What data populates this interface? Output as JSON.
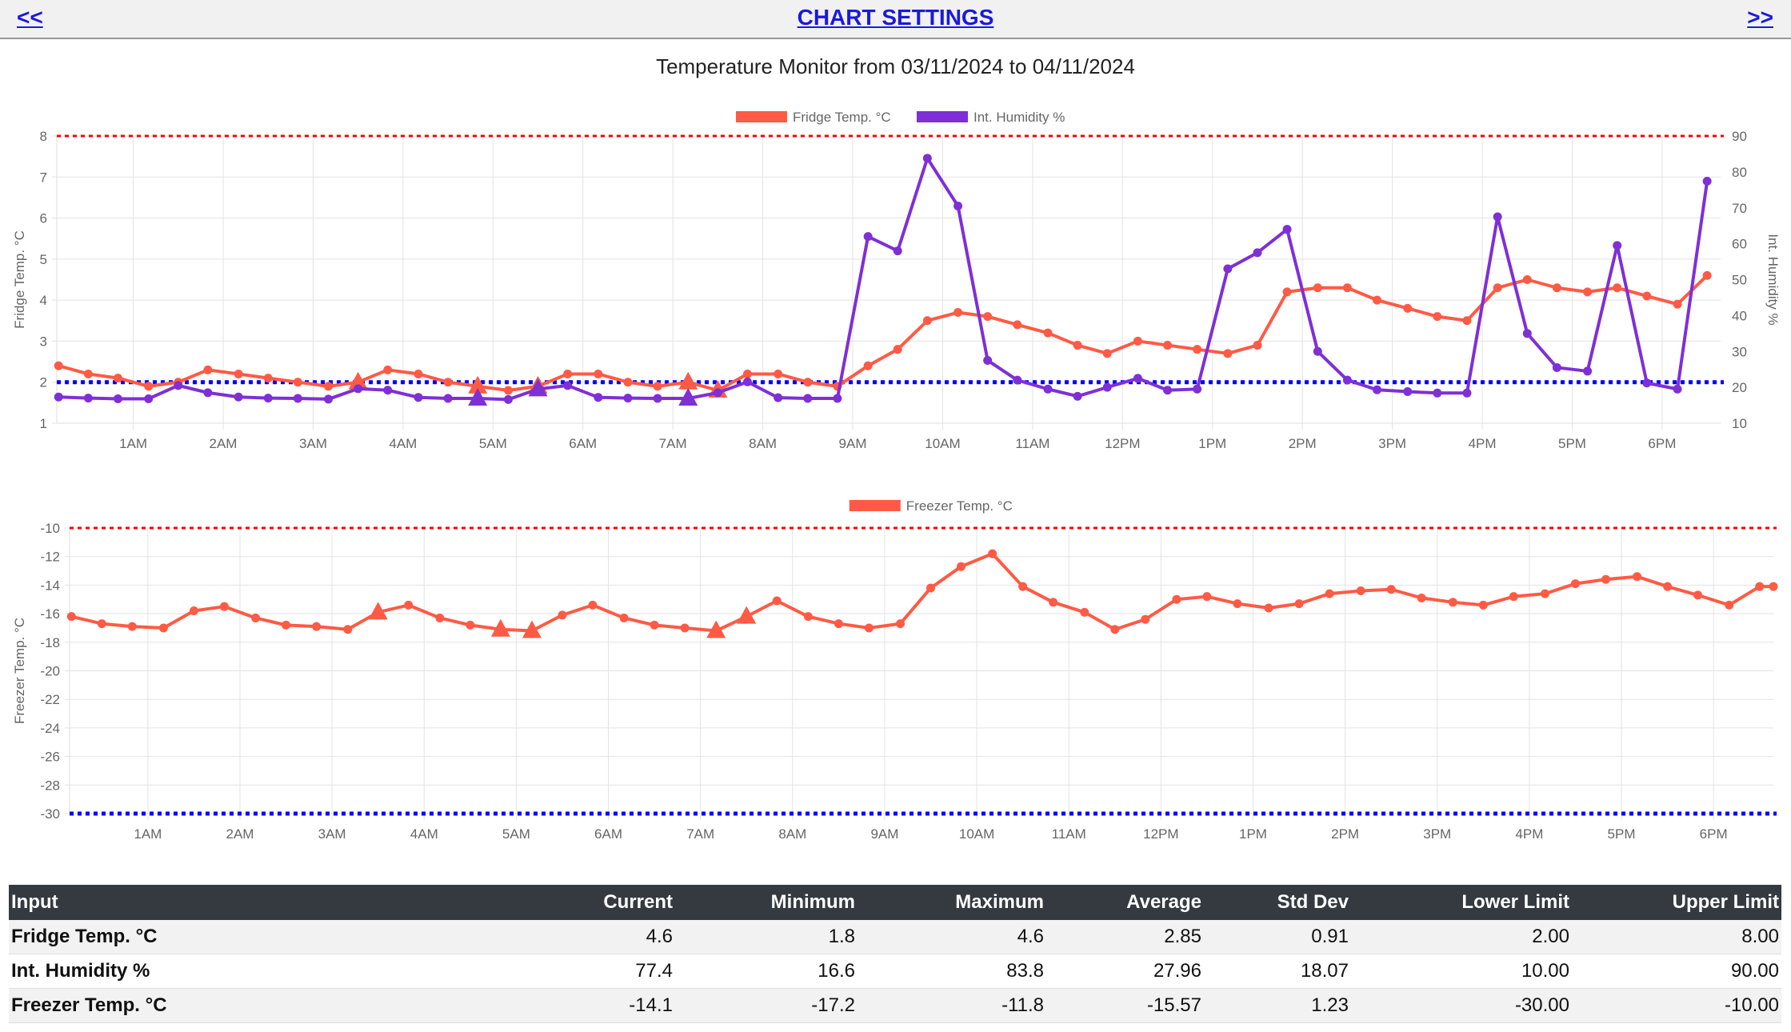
{
  "nav": {
    "prev": "<<",
    "title": "CHART SETTINGS",
    "next": ">>"
  },
  "page_title": "Temperature Monitor from 03/11/2024 to 04/11/2024",
  "colors": {
    "fridge": "#ff5a45",
    "humidity": "#7f2fd6",
    "freezer": "#ff5a45",
    "upper_limit": "#ff0000",
    "lower_limit": "#0000ff"
  },
  "chart_data": [
    {
      "type": "line",
      "x_ticks": [
        "1AM",
        "2AM",
        "3AM",
        "4AM",
        "5AM",
        "6AM",
        "7AM",
        "8AM",
        "9AM",
        "10AM",
        "11AM",
        "12PM",
        "1PM",
        "2PM",
        "3PM",
        "4PM",
        "5PM",
        "6PM"
      ],
      "xlim": [
        0.15,
        18.65
      ],
      "legend": [
        "Fridge Temp. °C",
        "Int. Humidity %"
      ],
      "legend_position": "top",
      "ylabel": "Fridge Temp. °C",
      "y2label": "Int. Humidity %",
      "ylim": [
        1,
        8
      ],
      "y2lim": [
        10,
        90
      ],
      "yticks": [
        1,
        2,
        3,
        4,
        5,
        6,
        7,
        8
      ],
      "y2ticks": [
        10,
        20,
        30,
        40,
        50,
        60,
        70,
        80,
        90
      ],
      "limits": {
        "upper": 8,
        "lower": 2
      },
      "series": [
        {
          "name": "Fridge Temp. °C",
          "x": [
            0.17,
            0.5,
            0.83,
            1.17,
            1.5,
            1.83,
            2.17,
            2.5,
            2.83,
            3.17,
            3.5,
            3.83,
            4.17,
            4.5,
            4.83,
            5.17,
            5.5,
            5.83,
            6.17,
            6.5,
            6.83,
            7.17,
            7.5,
            7.83,
            8.17,
            8.5,
            8.83,
            9.17,
            9.5,
            9.83,
            10.17,
            10.5,
            10.83,
            11.17,
            11.5,
            11.83,
            12.17,
            12.5,
            12.83,
            13.17,
            13.5,
            13.83,
            14.17,
            14.5,
            14.83,
            15.17,
            15.5,
            15.83,
            16.17,
            16.5,
            16.83,
            17.17,
            17.5,
            17.83,
            18.17,
            18.5
          ],
          "values": [
            2.4,
            2.2,
            2.1,
            1.9,
            2.0,
            2.3,
            2.2,
            2.1,
            2.0,
            1.9,
            2.0,
            2.3,
            2.2,
            2.0,
            1.9,
            1.8,
            1.9,
            2.2,
            2.2,
            2.0,
            1.9,
            2.0,
            1.8,
            2.2,
            2.2,
            2.0,
            1.9,
            2.4,
            2.8,
            3.5,
            3.7,
            3.6,
            3.4,
            3.2,
            2.9,
            2.7,
            3.0,
            2.9,
            2.8,
            2.7,
            2.9,
            4.2,
            4.3,
            4.3,
            4.0,
            3.8,
            3.6,
            3.5,
            4.3,
            4.5,
            4.3,
            4.2,
            4.3,
            4.1,
            3.9,
            4.6
          ],
          "triangle_markers": [
            3.5,
            4.83,
            5.5,
            7.17,
            7.5
          ]
        },
        {
          "name": "Int. Humidity %",
          "axis": "right",
          "x": [
            0.17,
            0.5,
            0.83,
            1.17,
            1.5,
            1.83,
            2.17,
            2.5,
            2.83,
            3.17,
            3.5,
            3.83,
            4.17,
            4.5,
            4.83,
            5.17,
            5.5,
            5.83,
            6.17,
            6.5,
            6.83,
            7.17,
            7.5,
            7.83,
            8.17,
            8.5,
            8.83,
            9.17,
            9.5,
            9.83,
            10.17,
            10.5,
            10.83,
            11.17,
            11.5,
            11.83,
            12.17,
            12.5,
            12.83,
            13.17,
            13.5,
            13.83,
            14.17,
            14.5,
            14.83,
            15.17,
            15.5,
            15.83,
            16.17,
            16.5,
            16.83,
            17.17,
            17.5,
            17.83,
            18.17,
            18.5
          ],
          "values": [
            17.3,
            17.0,
            16.8,
            16.8,
            20.5,
            18.5,
            17.3,
            17.0,
            16.9,
            16.7,
            19.6,
            19.2,
            17.2,
            16.9,
            16.9,
            16.6,
            19.5,
            20.5,
            17.2,
            17.0,
            16.9,
            16.9,
            18.5,
            21.5,
            17.1,
            16.9,
            16.9,
            62.0,
            58.0,
            83.8,
            70.5,
            27.5,
            22.0,
            19.5,
            17.5,
            20.0,
            22.5,
            19.2,
            19.5,
            53.0,
            57.5,
            64.0,
            30.0,
            22.0,
            19.3,
            18.8,
            18.4,
            18.4,
            67.5,
            35.0,
            25.5,
            24.5,
            59.5,
            21.2,
            19.5,
            77.4
          ],
          "triangle_markers": [
            4.83,
            5.5,
            7.17
          ]
        }
      ]
    },
    {
      "type": "line",
      "x_ticks": [
        "1AM",
        "2AM",
        "3AM",
        "4AM",
        "5AM",
        "6AM",
        "7AM",
        "8AM",
        "9AM",
        "10AM",
        "11AM",
        "12PM",
        "1PM",
        "2PM",
        "3PM",
        "4PM",
        "5PM",
        "6PM"
      ],
      "xlim": [
        0.15,
        18.65
      ],
      "legend": [
        "Freezer Temp. °C"
      ],
      "legend_position": "top",
      "ylabel": "Freezer Temp. °C",
      "ylim": [
        -30,
        -10
      ],
      "yticks": [
        -10,
        -12,
        -14,
        -16,
        -18,
        -20,
        -22,
        -24,
        -26,
        -28,
        -30
      ],
      "limits": {
        "upper": -10,
        "lower": -30
      },
      "series": [
        {
          "name": "Freezer Temp. °C",
          "x": [
            0.17,
            0.5,
            0.83,
            1.17,
            1.5,
            1.83,
            2.17,
            2.5,
            2.83,
            3.17,
            3.5,
            3.83,
            4.17,
            4.5,
            4.83,
            5.17,
            5.5,
            5.83,
            6.17,
            6.5,
            6.83,
            7.17,
            7.5,
            7.83,
            8.17,
            8.5,
            8.83,
            9.17,
            9.5,
            9.83,
            10.17,
            10.5,
            10.83,
            11.17,
            11.5,
            11.83,
            12.17,
            12.5,
            12.83,
            13.17,
            13.5,
            13.83,
            14.17,
            14.5,
            14.83,
            15.17,
            15.5,
            15.83,
            16.17,
            16.5,
            16.83,
            17.17,
            17.5,
            17.83,
            18.17,
            18.5,
            18.65
          ],
          "values": [
            -16.2,
            -16.7,
            -16.9,
            -17.0,
            -15.8,
            -15.5,
            -16.3,
            -16.8,
            -16.9,
            -17.1,
            -15.9,
            -15.4,
            -16.3,
            -16.8,
            -17.1,
            -17.2,
            -16.1,
            -15.4,
            -16.3,
            -16.8,
            -17.0,
            -17.2,
            -16.2,
            -15.1,
            -16.2,
            -16.7,
            -17.0,
            -16.7,
            -14.2,
            -12.7,
            -11.8,
            -14.1,
            -15.2,
            -15.9,
            -17.1,
            -16.4,
            -15.0,
            -14.8,
            -15.3,
            -15.6,
            -15.3,
            -14.6,
            -14.4,
            -14.3,
            -14.9,
            -15.2,
            -15.4,
            -14.8,
            -14.6,
            -13.9,
            -13.6,
            -13.4,
            -14.1,
            -14.7,
            -15.4,
            -14.1,
            -14.1
          ],
          "triangle_markers": [
            3.5,
            4.83,
            5.17,
            7.17,
            7.5
          ]
        }
      ]
    }
  ],
  "stats": {
    "headers": [
      "Input",
      "Current",
      "Minimum",
      "Maximum",
      "Average",
      "Std Dev",
      "Lower Limit",
      "Upper Limit"
    ],
    "rows": [
      [
        "Fridge Temp. °C",
        "4.6",
        "1.8",
        "4.6",
        "2.85",
        "0.91",
        "2.00",
        "8.00"
      ],
      [
        "Int. Humidity %",
        "77.4",
        "16.6",
        "83.8",
        "27.96",
        "18.07",
        "10.00",
        "90.00"
      ],
      [
        "Freezer Temp. °C",
        "-14.1",
        "-17.2",
        "-11.8",
        "-15.57",
        "1.23",
        "-30.00",
        "-10.00"
      ]
    ]
  }
}
